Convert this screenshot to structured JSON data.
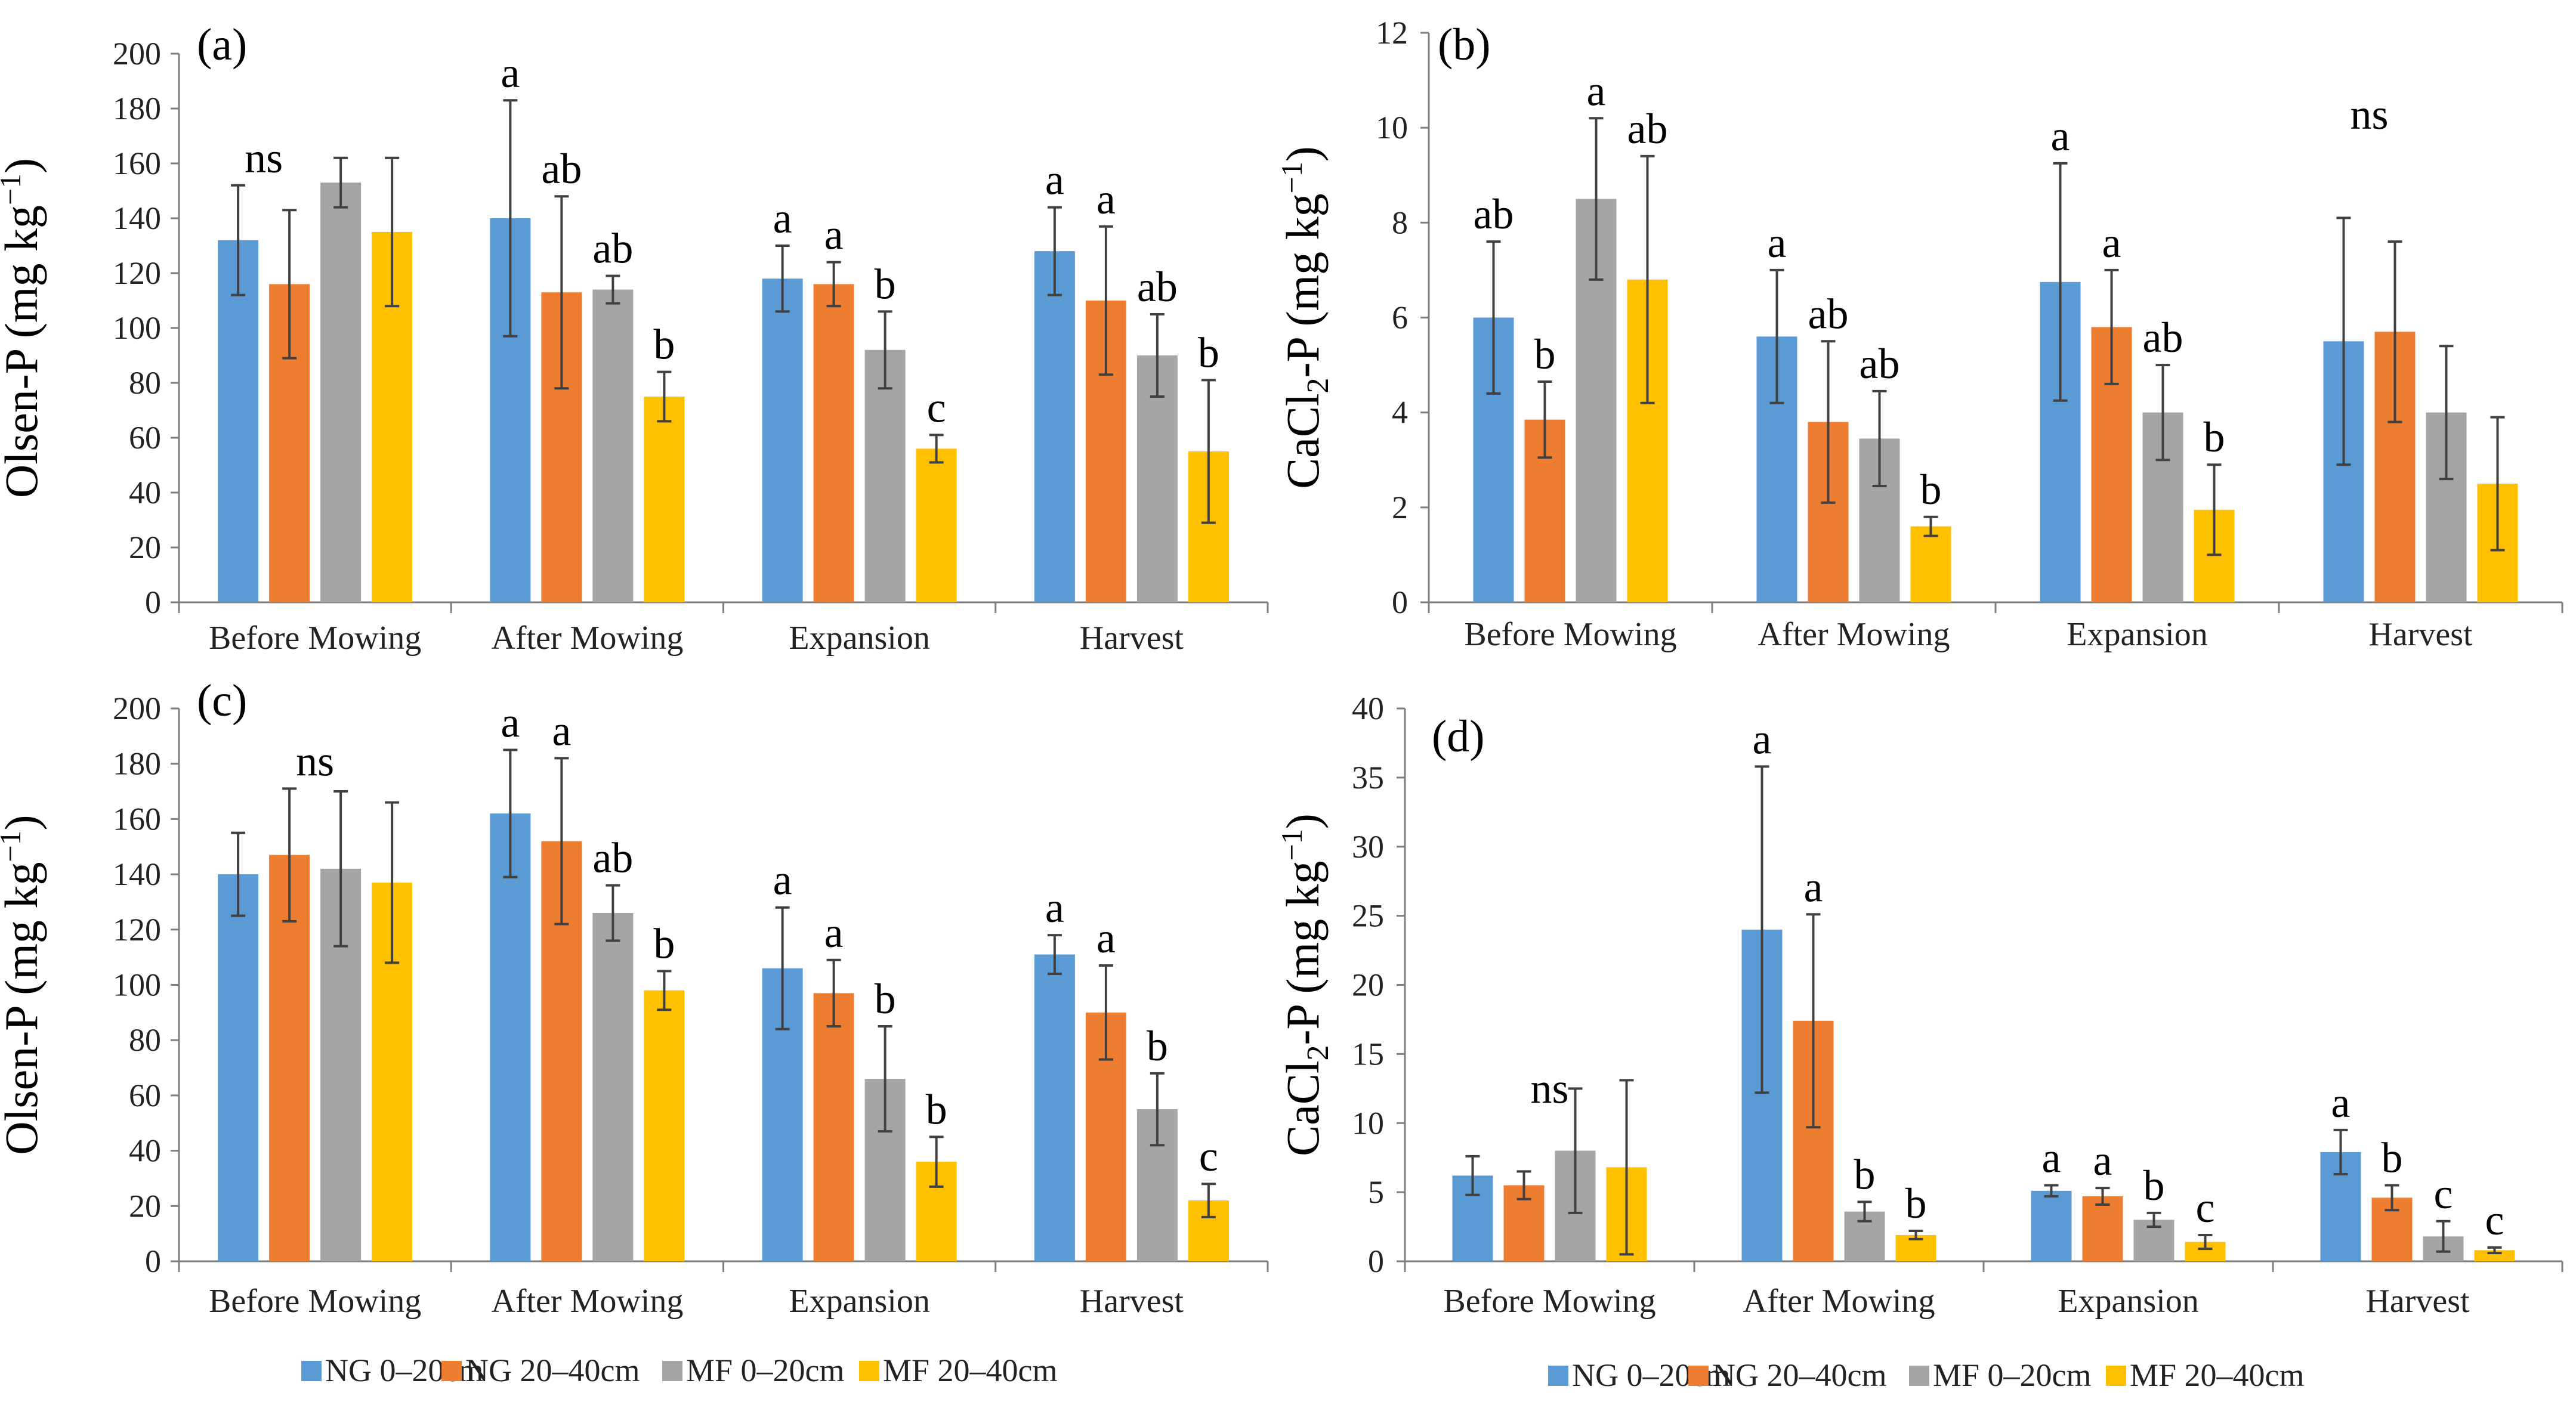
{
  "legend": [
    "NG 0–20cm",
    "NG 20–40cm",
    "MF 0–20cm",
    "MF 20–40cm"
  ],
  "colors": [
    "#5B9BD5",
    "#ED7D31",
    "#A5A5A5",
    "#FFC000"
  ],
  "chart_data": [
    {
      "type": "bar",
      "panel_label": "(a)",
      "ylabel": {
        "main": "Olsen-P (mg kg",
        "sup": "−1",
        "close": ")"
      },
      "ylim": [
        0,
        200
      ],
      "ytick_step": 20,
      "categories": [
        "Before Mowing",
        "After Mowing",
        "Expansion",
        "Harvest"
      ],
      "series": [
        {
          "name": "NG 0–20cm",
          "values": [
            132,
            140,
            118,
            128
          ],
          "errors": [
            20,
            43,
            12,
            16
          ]
        },
        {
          "name": "NG 20–40cm",
          "values": [
            116,
            113,
            116,
            110
          ],
          "errors": [
            27,
            35,
            8,
            27
          ]
        },
        {
          "name": "MF 0–20cm",
          "values": [
            153,
            114,
            92,
            90
          ],
          "errors": [
            9,
            5,
            14,
            15
          ]
        },
        {
          "name": "MF 20–40cm",
          "values": [
            135,
            75,
            56,
            55
          ],
          "errors": [
            27,
            9,
            5,
            26
          ]
        }
      ],
      "annotations": [
        {
          "category": 0,
          "series": 0,
          "text": "ns",
          "span": 2
        },
        {
          "category": 1,
          "series": 0,
          "text": "a"
        },
        {
          "category": 1,
          "series": 1,
          "text": "ab"
        },
        {
          "category": 1,
          "series": 2,
          "text": "ab"
        },
        {
          "category": 1,
          "series": 3,
          "text": "b"
        },
        {
          "category": 2,
          "series": 0,
          "text": "a"
        },
        {
          "category": 2,
          "series": 1,
          "text": "a"
        },
        {
          "category": 2,
          "series": 2,
          "text": "b"
        },
        {
          "category": 2,
          "series": 3,
          "text": "c"
        },
        {
          "category": 3,
          "series": 0,
          "text": "a"
        },
        {
          "category": 3,
          "series": 1,
          "text": "a"
        },
        {
          "category": 3,
          "series": 2,
          "text": "ab"
        },
        {
          "category": 3,
          "series": 3,
          "text": "b"
        }
      ]
    },
    {
      "type": "bar",
      "panel_label": "(b)",
      "ylabel": {
        "main": "CaCl",
        "sub": "2",
        "rest": "-P (mg kg",
        "sup": "−1",
        "close": ")"
      },
      "ylim": [
        0,
        12
      ],
      "ytick_step": 2,
      "categories": [
        "Before Mowing",
        "After Mowing",
        "Expansion",
        "Harvest"
      ],
      "series": [
        {
          "name": "NG 0–20cm",
          "values": [
            6.0,
            5.6,
            6.75,
            5.5
          ],
          "errors": [
            1.6,
            1.4,
            2.5,
            2.6
          ]
        },
        {
          "name": "NG 20–40cm",
          "values": [
            3.85,
            3.8,
            5.8,
            5.7
          ],
          "errors": [
            0.8,
            1.7,
            1.2,
            1.9
          ]
        },
        {
          "name": "MF 0–20cm",
          "values": [
            8.5,
            3.45,
            4.0,
            4.0
          ],
          "errors": [
            1.7,
            1.0,
            1.0,
            1.4
          ]
        },
        {
          "name": "MF 20–40cm",
          "values": [
            6.8,
            1.6,
            1.95,
            2.5
          ],
          "errors": [
            2.6,
            0.2,
            0.95,
            1.4
          ]
        }
      ],
      "annotations": [
        {
          "category": 0,
          "series": 0,
          "text": "ab"
        },
        {
          "category": 0,
          "series": 1,
          "text": "b"
        },
        {
          "category": 0,
          "series": 2,
          "text": "a"
        },
        {
          "category": 0,
          "series": 3,
          "text": "ab"
        },
        {
          "category": 1,
          "series": 0,
          "text": "a"
        },
        {
          "category": 1,
          "series": 1,
          "text": "ab"
        },
        {
          "category": 1,
          "series": 2,
          "text": "ab"
        },
        {
          "category": 1,
          "series": 3,
          "text": "b"
        },
        {
          "category": 2,
          "series": 0,
          "text": "a"
        },
        {
          "category": 2,
          "series": 1,
          "text": "a"
        },
        {
          "category": 2,
          "series": 2,
          "text": "ab"
        },
        {
          "category": 2,
          "series": 3,
          "text": "b"
        },
        {
          "category": 3,
          "series": 0,
          "text": "ns",
          "span": 2,
          "lift": 1.6
        }
      ]
    },
    {
      "type": "bar",
      "panel_label": "(c)",
      "ylabel": {
        "main": "Olsen-P (mg kg",
        "sup": "−1",
        "close": ")"
      },
      "ylim": [
        0,
        200
      ],
      "ytick_step": 20,
      "categories": [
        "Before Mowing",
        "After Mowing",
        "Expansion",
        "Harvest"
      ],
      "series": [
        {
          "name": "NG 0–20cm",
          "values": [
            140,
            162,
            106,
            111
          ],
          "errors": [
            15,
            23,
            22,
            7
          ]
        },
        {
          "name": "NG 20–40cm",
          "values": [
            147,
            152,
            97,
            90
          ],
          "errors": [
            24,
            30,
            12,
            17
          ]
        },
        {
          "name": "MF 0–20cm",
          "values": [
            142,
            126,
            66,
            55
          ],
          "errors": [
            28,
            10,
            19,
            13
          ]
        },
        {
          "name": "MF 20–40cm",
          "values": [
            137,
            98,
            36,
            22
          ],
          "errors": [
            29,
            7,
            9,
            6
          ]
        }
      ],
      "annotations": [
        {
          "category": 0,
          "series": 1,
          "text": "ns",
          "span": 2
        },
        {
          "category": 1,
          "series": 0,
          "text": "a"
        },
        {
          "category": 1,
          "series": 1,
          "text": "a"
        },
        {
          "category": 1,
          "series": 2,
          "text": "ab"
        },
        {
          "category": 1,
          "series": 3,
          "text": "b"
        },
        {
          "category": 2,
          "series": 0,
          "text": "a"
        },
        {
          "category": 2,
          "series": 1,
          "text": "a"
        },
        {
          "category": 2,
          "series": 2,
          "text": "b"
        },
        {
          "category": 2,
          "series": 3,
          "text": "b"
        },
        {
          "category": 3,
          "series": 0,
          "text": "a"
        },
        {
          "category": 3,
          "series": 1,
          "text": "a"
        },
        {
          "category": 3,
          "series": 2,
          "text": "b"
        },
        {
          "category": 3,
          "series": 3,
          "text": "c"
        }
      ]
    },
    {
      "type": "bar",
      "panel_label": "(d)",
      "ylabel": {
        "main": "CaCl",
        "sub": "2",
        "rest": "-P (mg kg",
        "sup": "−1",
        "close": ")"
      },
      "ylim": [
        0,
        40
      ],
      "ytick_step": 5,
      "categories": [
        "Before Mowing",
        "After Mowing",
        "Expansion",
        "Harvest"
      ],
      "series": [
        {
          "name": "NG 0–20cm",
          "values": [
            6.2,
            24.0,
            5.1,
            7.9
          ],
          "errors": [
            1.4,
            11.8,
            0.4,
            1.6
          ]
        },
        {
          "name": "NG 20–40cm",
          "values": [
            5.5,
            17.4,
            4.7,
            4.6
          ],
          "errors": [
            1.0,
            7.7,
            0.6,
            0.9
          ]
        },
        {
          "name": "MF 0–20cm",
          "values": [
            8.0,
            3.6,
            3.0,
            1.8
          ],
          "errors": [
            4.5,
            0.7,
            0.5,
            1.1
          ]
        },
        {
          "name": "MF 20–40cm",
          "values": [
            6.8,
            1.9,
            1.4,
            0.8
          ],
          "errors": [
            6.3,
            0.3,
            0.5,
            0.2
          ]
        }
      ],
      "annotations": [
        {
          "category": 0,
          "series": 1,
          "text": "ns",
          "span": 2,
          "lift": 4
        },
        {
          "category": 1,
          "series": 0,
          "text": "a"
        },
        {
          "category": 1,
          "series": 1,
          "text": "a"
        },
        {
          "category": 1,
          "series": 2,
          "text": "b"
        },
        {
          "category": 1,
          "series": 3,
          "text": "b"
        },
        {
          "category": 2,
          "series": 0,
          "text": "a"
        },
        {
          "category": 2,
          "series": 1,
          "text": "a"
        },
        {
          "category": 2,
          "series": 2,
          "text": "b"
        },
        {
          "category": 2,
          "series": 3,
          "text": "c"
        },
        {
          "category": 3,
          "series": 0,
          "text": "a"
        },
        {
          "category": 3,
          "series": 1,
          "text": "b"
        },
        {
          "category": 3,
          "series": 2,
          "text": "c"
        },
        {
          "category": 3,
          "series": 3,
          "text": "c"
        }
      ]
    }
  ]
}
